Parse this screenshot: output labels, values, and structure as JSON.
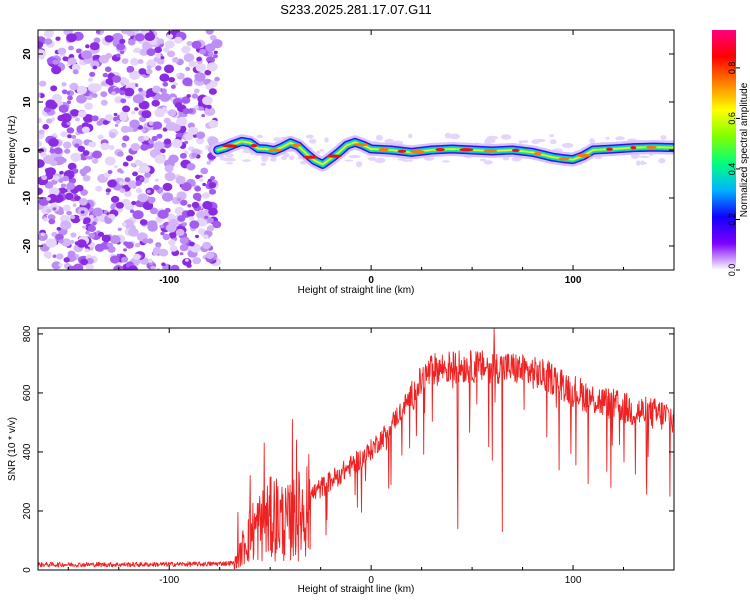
{
  "title": "S233.2025.281.17.07.G11",
  "chart_data": [
    {
      "type": "heatmap",
      "name": "spectrogram",
      "xlabel": "Height of straight line (km)",
      "ylabel": "Frequency (Hz)",
      "xlim": [
        -165,
        150
      ],
      "ylim": [
        -25,
        25
      ],
      "xticks": [
        -100,
        0,
        100
      ],
      "xtick_labels": [
        "-100",
        "0",
        "100"
      ],
      "yticks": [
        20,
        10,
        0,
        -10,
        -20
      ],
      "ytick_labels": [
        "20",
        "10",
        "0",
        "-10",
        "-20"
      ],
      "noise_region_x": [
        -165,
        -76
      ],
      "signal_start_x": -76,
      "frequency_track": {
        "x": [
          -76,
          -72,
          -68,
          -64,
          -60,
          -56,
          -52,
          -48,
          -44,
          -40,
          -36,
          -32,
          -28,
          -24,
          -20,
          -16,
          -12,
          -8,
          -4,
          0,
          10,
          20,
          30,
          40,
          50,
          60,
          70,
          80,
          85,
          90,
          95,
          100,
          105,
          110,
          120,
          130,
          140,
          150
        ],
        "y": [
          0,
          0.5,
          1.2,
          1.8,
          1.5,
          0.3,
          0.2,
          -0.1,
          0.6,
          1.5,
          0.8,
          -0.8,
          -2.2,
          -3.0,
          -1.8,
          -0.5,
          1.0,
          1.6,
          1.0,
          0.2,
          0.0,
          -0.5,
          0.0,
          0.2,
          0.0,
          -0.2,
          0.0,
          -0.5,
          -1.0,
          -1.5,
          -1.8,
          -2.0,
          -1.2,
          0.0,
          0.2,
          0.5,
          0.6,
          0.5
        ]
      },
      "colorbar": {
        "label": "Normalized spectral amplitude",
        "range": [
          0.0,
          0.95
        ],
        "ticks": [
          0.0,
          0.2,
          0.4,
          0.6,
          0.8
        ],
        "tick_labels": [
          "0.0",
          "0.2",
          "0.4",
          "0.6",
          "0.8"
        ],
        "colormap": [
          "#ffffff",
          "#7d00ff",
          "#1000ff",
          "#00b3ff",
          "#00ff80",
          "#80ff00",
          "#ffff00",
          "#ff8000",
          "#ff0000",
          "#ff0080"
        ]
      }
    },
    {
      "type": "line",
      "name": "snr",
      "xlabel": "Height of straight line (km)",
      "ylabel": "SNR (10 * v/v)",
      "xlim": [
        -165,
        150
      ],
      "ylim": [
        0,
        820
      ],
      "xticks": [
        -100,
        0,
        100
      ],
      "xtick_labels": [
        "-100",
        "0",
        "100"
      ],
      "yticks": [
        0,
        200,
        400,
        600,
        800
      ],
      "ytick_labels": [
        "0",
        "200",
        "400",
        "600",
        "800"
      ],
      "color": "#ee2222",
      "trend": {
        "x": [
          -165,
          -120,
          -80,
          -68,
          -66,
          -62,
          -58,
          -54,
          -50,
          -46,
          -42,
          -38,
          -34,
          -30,
          -26,
          -22,
          -18,
          -14,
          -10,
          -6,
          -2,
          2,
          6,
          10,
          14,
          18,
          22,
          26,
          30,
          40,
          50,
          60,
          70,
          80,
          90,
          100,
          110,
          120,
          130,
          140,
          150
        ],
        "y": [
          20,
          20,
          22,
          25,
          40,
          120,
          160,
          180,
          200,
          210,
          180,
          200,
          230,
          260,
          280,
          300,
          320,
          340,
          360,
          380,
          400,
          430,
          460,
          500,
          540,
          580,
          620,
          660,
          690,
          700,
          700,
          700,
          695,
          680,
          660,
          620,
          590,
          570,
          550,
          540,
          530
        ]
      },
      "spikes": [
        {
          "x": -66,
          "y": 195
        },
        {
          "x": -60,
          "y": 320
        },
        {
          "x": -53,
          "y": 430
        },
        {
          "x": -48,
          "y": 300
        },
        {
          "x": -39,
          "y": 510
        },
        {
          "x": -37,
          "y": 440
        },
        {
          "x": 61,
          "y": 820
        },
        {
          "x": 43,
          "y": 140
        },
        {
          "x": 65,
          "y": 130
        },
        {
          "x": 148,
          "y": 250
        }
      ]
    }
  ]
}
